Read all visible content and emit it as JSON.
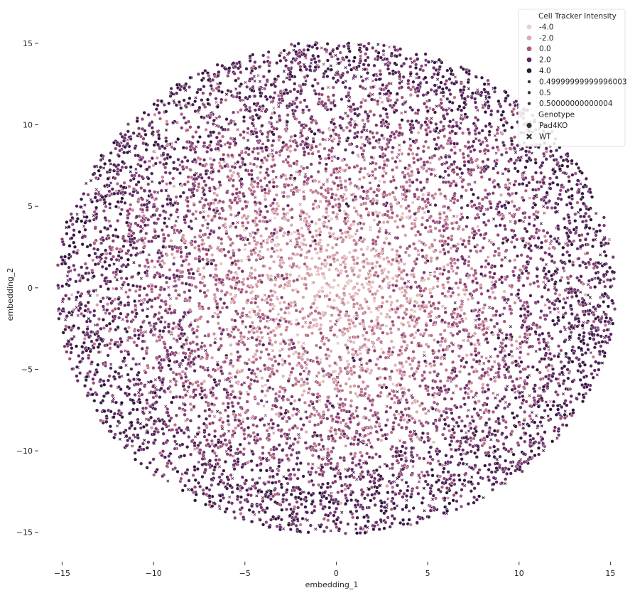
{
  "chart_data": {
    "type": "scatter",
    "title": "",
    "xlabel": "embedding_1",
    "ylabel": "embedding_2",
    "xlim": [
      -16.3,
      15.8
    ],
    "ylim": [
      -16.8,
      16.0
    ],
    "xticks": [
      -15,
      -10,
      -5,
      0,
      5,
      10,
      15
    ],
    "yticks": [
      -15,
      -10,
      -5,
      0,
      5,
      10,
      15
    ],
    "xtick_labels": [
      "−15",
      "−10",
      "−5",
      "0",
      "5",
      "10",
      "15"
    ],
    "ytick_labels": [
      "−15",
      "−10",
      "−5",
      "0",
      "5",
      "10",
      "15"
    ],
    "grid": false,
    "legend_placement": "top-right",
    "point_count_approx": 9000,
    "point_region": "roughly circular cloud, radius about 15, lighter (lower intensity) values concentrated near the center",
    "hue": {
      "title": "Cell Tracker Intensity",
      "entries": [
        {
          "label": "-4.0",
          "value": -4.0,
          "color": "#ebcfca"
        },
        {
          "label": "-2.0",
          "value": -2.0,
          "color": "#ddaaad"
        },
        {
          "label": "0.0",
          "value": 0.0,
          "color": "#a8557e"
        },
        {
          "label": "2.0",
          "value": 2.0,
          "color": "#5b2664"
        },
        {
          "label": "4.0",
          "value": 4.0,
          "color": "#2a1537"
        }
      ]
    },
    "size": {
      "entries": [
        {
          "label": "0.49999999999996003"
        },
        {
          "label": "0.5"
        },
        {
          "label": "0.50000000000004"
        }
      ]
    },
    "style": {
      "title": "Genotype",
      "entries": [
        {
          "label": "Pad4KO",
          "marker": "circle"
        },
        {
          "label": "WT",
          "marker": "x"
        }
      ]
    }
  }
}
